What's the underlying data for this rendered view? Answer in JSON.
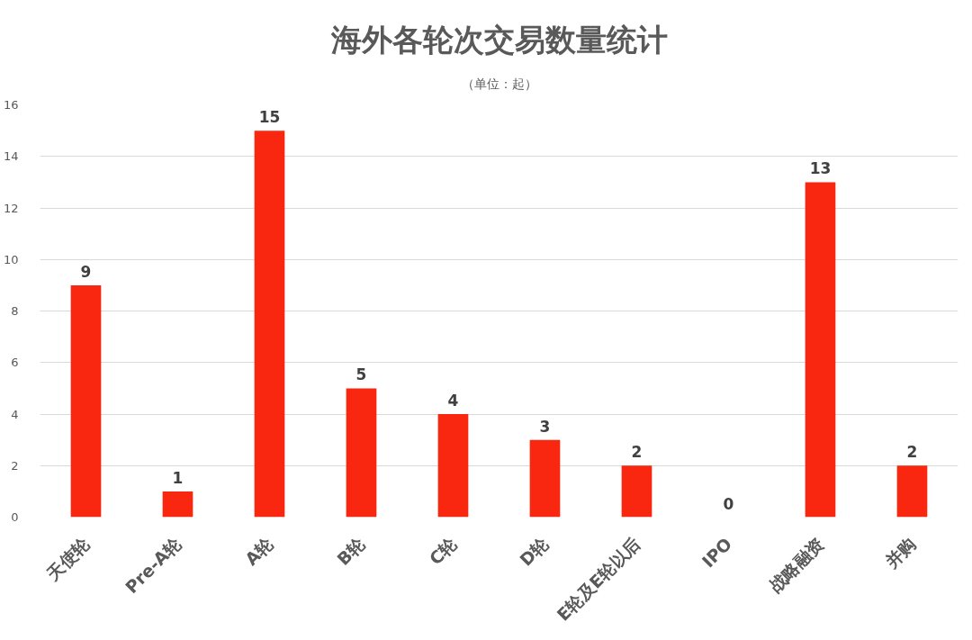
{
  "chart_data": {
    "type": "bar",
    "title": "海外各轮次交易数量统计",
    "subtitle": "（单位：起）",
    "categories": [
      "天使轮",
      "Pre-A轮",
      "A轮",
      "B轮",
      "C轮",
      "D轮",
      "E轮及E轮以后",
      "IPO",
      "战略融资",
      "并购"
    ],
    "values": [
      9,
      1,
      15,
      5,
      4,
      3,
      2,
      0,
      13,
      2
    ],
    "color": "#f9270f",
    "ylim": [
      0,
      16
    ],
    "yticks": [
      0,
      2,
      4,
      6,
      8,
      10,
      12,
      14,
      16
    ],
    "grid": "y",
    "data_labels": true
  }
}
